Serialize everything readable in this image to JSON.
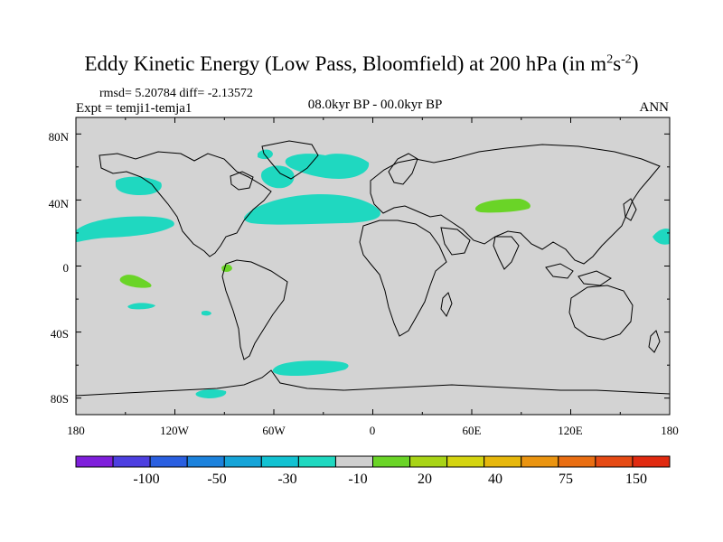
{
  "header": {
    "title_main": "Eddy Kinetic Energy (Low Pass, Bloomfield) at 200 hPa (in m",
    "title_sup1": "2",
    "title_mid": "s",
    "title_sup2": "-2",
    "title_end": ")",
    "stats": "rmsd= 5.20784 diff= -2.13572",
    "experiment": "Expt = temji1-temja1",
    "period": "08.0kyr BP - 00.0kyr BP",
    "season": "ANN"
  },
  "map": {
    "lat_ticks": [
      "80N",
      "40N",
      "0",
      "40S",
      "80S"
    ],
    "lon_ticks": [
      "180",
      "120W",
      "60W",
      "0",
      "60E",
      "120E",
      "180"
    ],
    "land_color": "#d3d3d3",
    "coast_color": "#000000"
  },
  "colorbar": {
    "labels": [
      "-100",
      "-50",
      "-30",
      "-10",
      "20",
      "40",
      "75",
      "150"
    ],
    "colors": [
      "#7f1fdb",
      "#4d3fe0",
      "#2a5fe0",
      "#1c82dc",
      "#16a4d8",
      "#12c2d2",
      "#1fd8c0",
      "#cfcfcf",
      "#6ad427",
      "#a8d416",
      "#d4d410",
      "#e6b70c",
      "#ea9410",
      "#e96e12",
      "#e54a14",
      "#e02a10"
    ]
  }
}
